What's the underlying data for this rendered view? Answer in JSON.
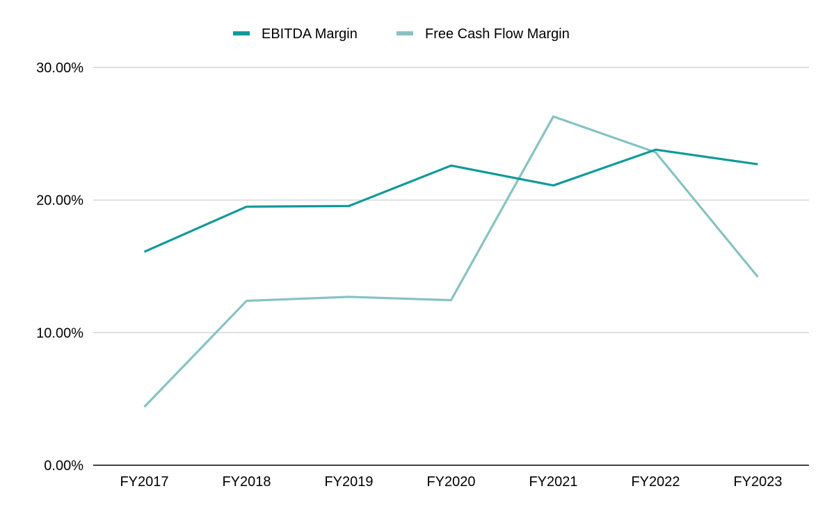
{
  "chart_data": {
    "type": "line",
    "title": "",
    "xlabel": "",
    "ylabel": "",
    "categories": [
      "FY2017",
      "FY2018",
      "FY2019",
      "FY2020",
      "FY2021",
      "FY2022",
      "FY2023"
    ],
    "ylim": [
      0,
      30
    ],
    "y_ticks": [
      0,
      10,
      20,
      30
    ],
    "y_tick_labels": [
      "0.00%",
      "10.00%",
      "20.00%",
      "30.00%"
    ],
    "grid": true,
    "legend_position": "top-center",
    "series": [
      {
        "name": "EBITDA Margin",
        "color": "#11999a",
        "values": [
          16.1,
          19.5,
          19.55,
          22.6,
          21.1,
          23.8,
          22.7
        ]
      },
      {
        "name": "Free Cash Flow Margin",
        "color": "#87c2c2",
        "values": [
          4.4,
          12.4,
          12.7,
          12.45,
          26.3,
          23.6,
          14.2
        ]
      }
    ]
  }
}
